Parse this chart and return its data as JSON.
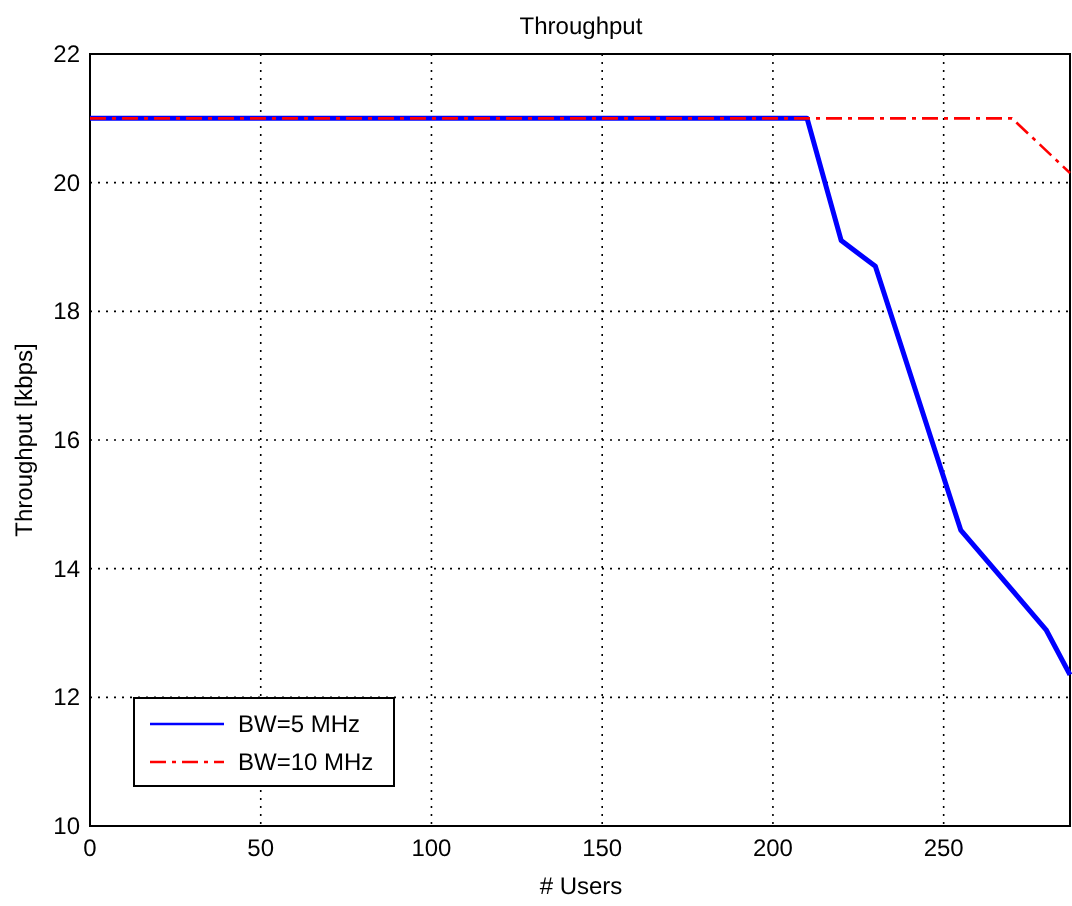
{
  "chart_data": {
    "type": "line",
    "title": "Throughput",
    "xlabel": "# Users",
    "ylabel": "Throughput [kbps]",
    "xlim": [
      0,
      287
    ],
    "ylim": [
      10,
      22
    ],
    "xticks": [
      0,
      50,
      100,
      150,
      200,
      250
    ],
    "yticks": [
      10,
      12,
      14,
      16,
      18,
      20,
      22
    ],
    "grid": true,
    "legend": "bottom left",
    "series": [
      {
        "name": "BW=5 MHz",
        "color": "#0000ff",
        "line_style": "solid",
        "x": [
          0,
          210,
          220,
          230,
          255,
          280,
          287
        ],
        "values": [
          21,
          21,
          19.1,
          18.7,
          14.6,
          13.05,
          12.35
        ]
      },
      {
        "name": "BW=10 MHz",
        "color": "#ff0000",
        "line_style": "dashdot",
        "x": [
          0,
          270,
          287
        ],
        "values": [
          21,
          21,
          20.15
        ]
      }
    ]
  }
}
